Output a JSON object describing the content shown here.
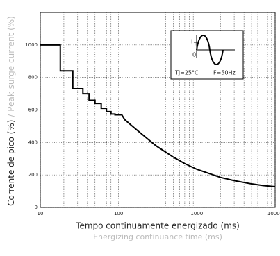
{
  "chart_data": {
    "type": "line",
    "xlabel": "Tempo continuamente energizado (ms)",
    "xlabel_en": "Energizing continuance time (ms)",
    "ylabel": "Corrente de pico (%)",
    "ylabel_en": "/ Peak surge current (%)",
    "xscale": "log",
    "grid": true,
    "xlim": [
      10,
      10000
    ],
    "ylim": [
      0,
      1200
    ],
    "xticks": [
      10,
      100,
      1000,
      10000
    ],
    "xminor": [
      20,
      30,
      40,
      50,
      60,
      70,
      80,
      90,
      200,
      300,
      400,
      500,
      600,
      700,
      800,
      900,
      2000,
      3000,
      4000,
      5000,
      6000,
      7000,
      8000,
      9000
    ],
    "yticks": [
      0,
      200,
      400,
      600,
      800,
      1000
    ],
    "series": [
      {
        "color": "#000000",
        "x": [
          10,
          18,
          18,
          26,
          26,
          35,
          35,
          42,
          42,
          50,
          50,
          60,
          60,
          70,
          70,
          80,
          80,
          90,
          90,
          110,
          120,
          150,
          200,
          300,
          500,
          700,
          1000,
          2000,
          3000,
          5000,
          7000,
          10000
        ],
        "values": [
          1000,
          1000,
          840,
          840,
          730,
          730,
          700,
          700,
          660,
          660,
          640,
          640,
          610,
          610,
          590,
          590,
          575,
          575,
          570,
          570,
          540,
          500,
          450,
          380,
          310,
          270,
          235,
          185,
          165,
          145,
          135,
          128
        ]
      }
    ],
    "annotations": {
      "current": "I",
      "sub": "T",
      "zero": "0",
      "tj": "Tj=25°C",
      "freq": "F=50Hz"
    }
  }
}
